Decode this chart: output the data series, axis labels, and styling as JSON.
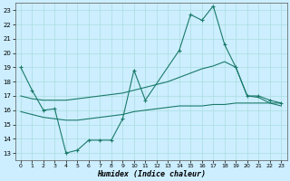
{
  "bg_color": "#cceeff",
  "grid_color": "#aadddd",
  "line_color": "#1a7a6a",
  "xlabel": "Humidex (Indice chaleur)",
  "xlim": [
    -0.5,
    23.5
  ],
  "ylim": [
    12.5,
    23.5
  ],
  "yticks": [
    13,
    14,
    15,
    16,
    17,
    18,
    19,
    20,
    21,
    22,
    23
  ],
  "xticks": [
    0,
    1,
    2,
    3,
    4,
    5,
    6,
    7,
    8,
    9,
    10,
    11,
    12,
    13,
    14,
    15,
    16,
    17,
    18,
    19,
    20,
    21,
    22,
    23
  ],
  "line_main_x": [
    0,
    1,
    2,
    3,
    4,
    5,
    6,
    7,
    8,
    9,
    10,
    11,
    14,
    15,
    16,
    17,
    18,
    19,
    20,
    21,
    22,
    23
  ],
  "line_main_y": [
    19,
    17.4,
    16.0,
    16.1,
    13.0,
    13.2,
    13.9,
    13.9,
    13.9,
    15.4,
    18.8,
    16.7,
    20.2,
    22.7,
    22.3,
    23.3,
    20.6,
    19.0,
    17.0,
    17.0,
    16.7,
    16.5
  ],
  "line_upper_x": [
    0,
    1,
    2,
    3,
    4,
    5,
    6,
    7,
    8,
    9,
    10,
    11,
    12,
    13,
    14,
    15,
    16,
    17,
    18,
    19,
    20,
    21,
    22,
    23
  ],
  "line_upper_y": [
    17.0,
    16.8,
    16.7,
    16.7,
    16.7,
    16.8,
    16.9,
    17.0,
    17.1,
    17.2,
    17.4,
    17.6,
    17.8,
    18.0,
    18.3,
    18.6,
    18.9,
    19.1,
    19.4,
    19.0,
    17.0,
    16.9,
    16.5,
    16.3
  ],
  "line_lower_x": [
    0,
    1,
    2,
    3,
    4,
    5,
    6,
    7,
    8,
    9,
    10,
    11,
    12,
    13,
    14,
    15,
    16,
    17,
    18,
    19,
    20,
    21,
    22,
    23
  ],
  "line_lower_y": [
    15.9,
    15.7,
    15.5,
    15.4,
    15.3,
    15.3,
    15.4,
    15.5,
    15.6,
    15.7,
    15.9,
    16.0,
    16.1,
    16.2,
    16.3,
    16.3,
    16.3,
    16.4,
    16.4,
    16.5,
    16.5,
    16.5,
    16.5,
    16.5
  ]
}
